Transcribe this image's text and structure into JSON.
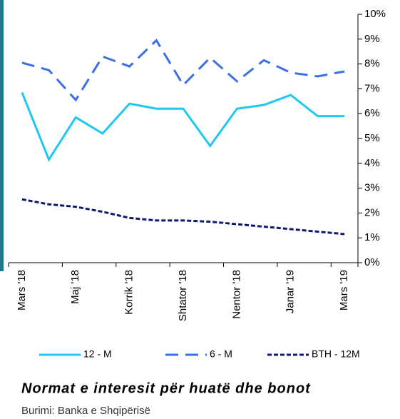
{
  "chart_data": {
    "type": "line",
    "title": "Normat e interesit për huatë dhe bonot",
    "source": "Burimi: Banka e Shqipërisë",
    "categories": [
      "Mars '18",
      null,
      "Maj '18",
      null,
      "Korrik '18",
      null,
      "Shtator '18",
      null,
      "Nentor '18",
      null,
      "Janar '19",
      null,
      "Mars '19"
    ],
    "series": [
      {
        "name": "12 - M",
        "color": "#1ec8f2",
        "dash": "solid",
        "values": [
          6.85,
          4.15,
          5.85,
          5.2,
          6.4,
          6.2,
          6.2,
          4.7,
          6.2,
          6.35,
          6.75,
          5.9,
          5.9
        ]
      },
      {
        "name": "6 - M",
        "color": "#3b6fe4",
        "dash": "long",
        "values": [
          8.05,
          7.75,
          6.55,
          8.3,
          7.9,
          8.95,
          7.15,
          8.25,
          7.3,
          8.15,
          7.65,
          7.5,
          7.7
        ]
      },
      {
        "name": "BTH - 12M",
        "color": "#0d1a6e",
        "dash": "short",
        "values": [
          2.55,
          2.35,
          2.25,
          2.05,
          1.8,
          1.7,
          1.7,
          1.65,
          1.55,
          1.45,
          1.35,
          1.25,
          1.15
        ]
      }
    ],
    "ylim": [
      0,
      10
    ],
    "yticks": [
      {
        "value": 0,
        "label": "0%"
      },
      {
        "value": 1,
        "label": "1%"
      },
      {
        "value": 2,
        "label": "2%"
      },
      {
        "value": 3,
        "label": "3%"
      },
      {
        "value": 4,
        "label": "4%"
      },
      {
        "value": 5,
        "label": "5%"
      },
      {
        "value": 6,
        "label": "6%"
      },
      {
        "value": 7,
        "label": "7%"
      },
      {
        "value": 8,
        "label": "8%"
      },
      {
        "value": 9,
        "label": "9%"
      },
      {
        "value": 10,
        "label": "10%"
      }
    ],
    "y_axis_side": "right",
    "legend": "bottom"
  }
}
